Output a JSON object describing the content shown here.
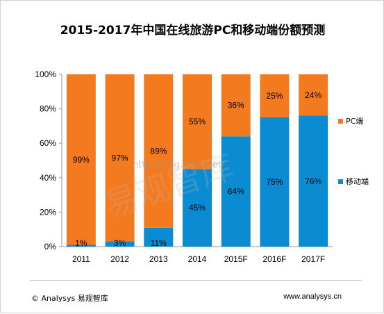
{
  "chart_data": {
    "type": "bar",
    "stacked": true,
    "title": "2015-2017年中国在线旅游PC和移动端份额预测",
    "categories": [
      "2011",
      "2012",
      "2013",
      "2014",
      "2015F",
      "2016F",
      "2017F"
    ],
    "series": [
      {
        "name": "移动端",
        "color": "#0b8bd1",
        "values": [
          1,
          3,
          11,
          45,
          64,
          75,
          76
        ]
      },
      {
        "name": "PC端",
        "color": "#f47a20",
        "values": [
          99,
          97,
          89,
          55,
          36,
          25,
          24
        ]
      }
    ],
    "yticks": [
      "0%",
      "20%",
      "40%",
      "60%",
      "80%",
      "100%"
    ],
    "ylim": [
      0,
      100
    ],
    "legend": "right"
  },
  "watermark": {
    "url": "http://blog.csdn.net/",
    "text": "易观智库"
  },
  "footer": {
    "left": "© Analysys 易观智库",
    "right": "www.analysys.cn"
  }
}
